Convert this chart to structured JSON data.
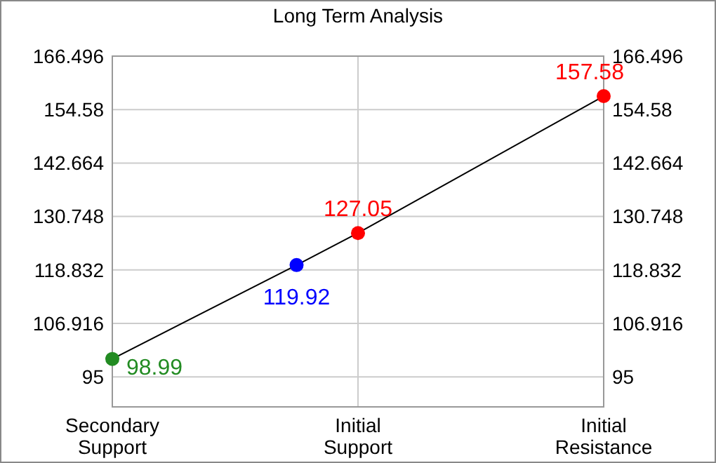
{
  "chart_data": {
    "type": "line",
    "title": "Long Term Analysis",
    "categories": [
      "Secondary Support",
      null,
      null,
      null,
      "Initial Support",
      null,
      null,
      null,
      "Initial Resistance"
    ],
    "ylim": [
      88.3,
      166.496
    ],
    "yticks": [
      95,
      106.916,
      118.832,
      130.748,
      142.664,
      154.58,
      166.496
    ],
    "y2lim": [
      88.3,
      166.496
    ],
    "y2ticks": [
      95,
      106.916,
      118.832,
      130.748,
      142.664,
      154.58,
      166.496
    ],
    "grid": true,
    "data_labels": true,
    "series": [
      {
        "color": "#000000",
        "colors": [
          "#228b22",
          null,
          null,
          "#0000ff",
          "#ff0000",
          null,
          null,
          null,
          "#ff0000"
        ],
        "marker": "circle",
        "values": [
          98.99,
          null,
          null,
          119.92,
          127.05,
          null,
          null,
          null,
          157.58
        ]
      }
    ]
  }
}
